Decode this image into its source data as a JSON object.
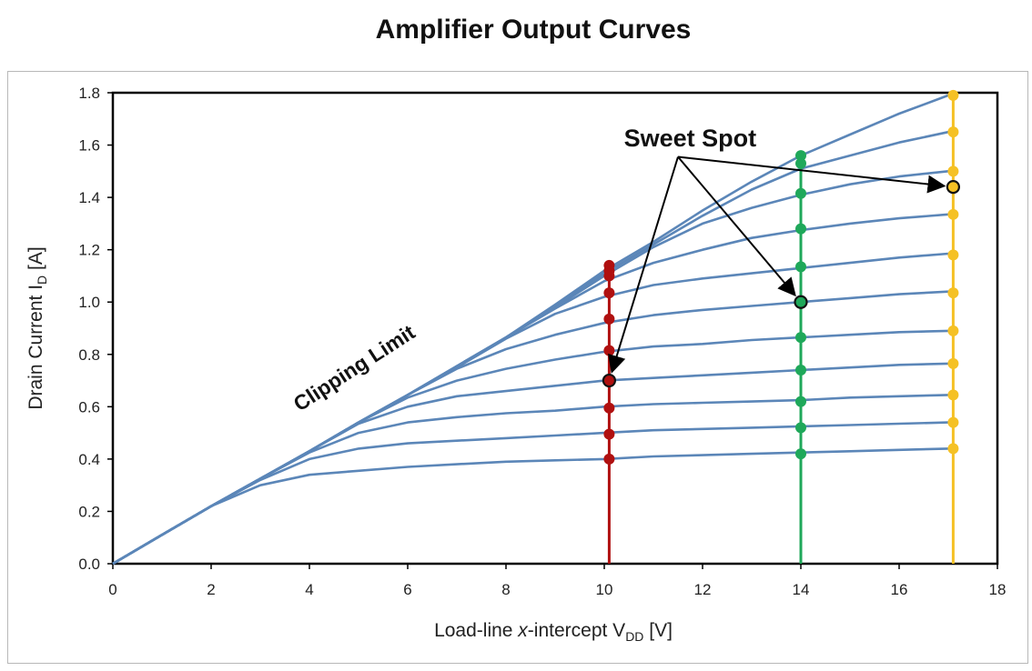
{
  "chart_data": {
    "type": "line",
    "title": "Amplifier Output Curves",
    "xlabel": {
      "main": "Load-line ",
      "italic": "x",
      "rest": "-intercept V",
      "sub": "DD",
      "unit": " [V]"
    },
    "ylabel": {
      "main": "Drain Current I",
      "sub": "D",
      "unit": " [A]"
    },
    "xlim": [
      0,
      18
    ],
    "ylim": [
      0,
      1.8
    ],
    "x_ticks": [
      "0",
      "2",
      "4",
      "6",
      "8",
      "10",
      "12",
      "14",
      "16",
      "18"
    ],
    "y_ticks": [
      "0.0",
      "0.2",
      "0.4",
      "0.6",
      "0.8",
      "1.0",
      "1.2",
      "1.4",
      "1.6",
      "1.8"
    ],
    "grid": false,
    "colors": {
      "curves": "#5b86b8",
      "red": "#b01010",
      "green": "#1fa85a",
      "yellow": "#f5c125",
      "frame": "#000000"
    },
    "series": [
      {
        "x": [
          0,
          1,
          2,
          3,
          4,
          5,
          6,
          7,
          8,
          9,
          10,
          11,
          12,
          13,
          14,
          15,
          16,
          17
        ],
        "y": [
          0,
          0.11,
          0.22,
          0.3,
          0.34,
          0.355,
          0.37,
          0.38,
          0.39,
          0.395,
          0.4,
          0.41,
          0.415,
          0.42,
          0.425,
          0.43,
          0.435,
          0.44
        ]
      },
      {
        "x": [
          0,
          1,
          2,
          3,
          4,
          5,
          6,
          7,
          8,
          9,
          10,
          11,
          12,
          13,
          14,
          15,
          16,
          17
        ],
        "y": [
          0,
          0.11,
          0.22,
          0.32,
          0.4,
          0.44,
          0.46,
          0.47,
          0.48,
          0.49,
          0.5,
          0.51,
          0.515,
          0.52,
          0.525,
          0.53,
          0.535,
          0.54
        ]
      },
      {
        "x": [
          0,
          1,
          2,
          3,
          4,
          5,
          6,
          7,
          8,
          9,
          10,
          11,
          12,
          13,
          14,
          15,
          16,
          17
        ],
        "y": [
          0,
          0.11,
          0.22,
          0.325,
          0.425,
          0.5,
          0.54,
          0.56,
          0.575,
          0.585,
          0.6,
          0.61,
          0.615,
          0.62,
          0.625,
          0.635,
          0.64,
          0.645
        ]
      },
      {
        "x": [
          0,
          1,
          2,
          3,
          4,
          5,
          6,
          7,
          8,
          9,
          10,
          11,
          12,
          13,
          14,
          15,
          16,
          17
        ],
        "y": [
          0,
          0.11,
          0.22,
          0.325,
          0.43,
          0.535,
          0.6,
          0.64,
          0.66,
          0.68,
          0.7,
          0.71,
          0.72,
          0.73,
          0.74,
          0.75,
          0.76,
          0.765
        ]
      },
      {
        "x": [
          0,
          1,
          2,
          3,
          4,
          5,
          6,
          7,
          8,
          9,
          10,
          11,
          12,
          13,
          14,
          15,
          16,
          17
        ],
        "y": [
          0,
          0.11,
          0.22,
          0.325,
          0.43,
          0.54,
          0.635,
          0.7,
          0.745,
          0.78,
          0.81,
          0.83,
          0.84,
          0.855,
          0.865,
          0.875,
          0.885,
          0.89
        ]
      },
      {
        "x": [
          0,
          1,
          2,
          3,
          4,
          5,
          6,
          7,
          8,
          9,
          10,
          11,
          12,
          13,
          14,
          15,
          16,
          17
        ],
        "y": [
          0,
          0.11,
          0.22,
          0.325,
          0.43,
          0.54,
          0.645,
          0.745,
          0.82,
          0.875,
          0.92,
          0.95,
          0.97,
          0.985,
          1.0,
          1.015,
          1.03,
          1.04
        ]
      },
      {
        "x": [
          0,
          1,
          2,
          3,
          4,
          5,
          6,
          7,
          8,
          9,
          10,
          11,
          12,
          13,
          14,
          15,
          16,
          17
        ],
        "y": [
          0,
          0.11,
          0.22,
          0.325,
          0.43,
          0.54,
          0.645,
          0.75,
          0.86,
          0.955,
          1.02,
          1.065,
          1.09,
          1.11,
          1.13,
          1.15,
          1.17,
          1.185
        ]
      },
      {
        "x": [
          0,
          1,
          2,
          3,
          4,
          5,
          6,
          7,
          8,
          9,
          10,
          11,
          12,
          13,
          14,
          15,
          16,
          17
        ],
        "y": [
          0,
          0.11,
          0.22,
          0.325,
          0.43,
          0.54,
          0.645,
          0.755,
          0.865,
          0.975,
          1.08,
          1.15,
          1.2,
          1.245,
          1.275,
          1.3,
          1.32,
          1.335
        ]
      },
      {
        "x": [
          0,
          1,
          2,
          3,
          4,
          5,
          6,
          7,
          8,
          9,
          10,
          11,
          12,
          13,
          14,
          15,
          16,
          17
        ],
        "y": [
          0,
          0.11,
          0.22,
          0.325,
          0.43,
          0.54,
          0.645,
          0.755,
          0.865,
          0.98,
          1.1,
          1.21,
          1.3,
          1.36,
          1.41,
          1.45,
          1.48,
          1.5
        ]
      },
      {
        "x": [
          0,
          1,
          2,
          3,
          4,
          5,
          6,
          7,
          8,
          9,
          10,
          11,
          12,
          13,
          14,
          15,
          16,
          17
        ],
        "y": [
          0,
          0.11,
          0.22,
          0.325,
          0.43,
          0.54,
          0.645,
          0.755,
          0.865,
          0.985,
          1.11,
          1.22,
          1.33,
          1.43,
          1.51,
          1.56,
          1.61,
          1.65
        ]
      },
      {
        "x": [
          0,
          1,
          2,
          3,
          4,
          5,
          6,
          7,
          8,
          9,
          10,
          11,
          12,
          13,
          14,
          15,
          16,
          17
        ],
        "y": [
          0,
          0.11,
          0.22,
          0.325,
          0.43,
          0.54,
          0.645,
          0.755,
          0.865,
          0.99,
          1.12,
          1.23,
          1.35,
          1.46,
          1.56,
          1.64,
          1.72,
          1.79
        ]
      }
    ],
    "vertical_lines": [
      {
        "color": "red",
        "x": 10.1,
        "y_top": 1.14,
        "points": [
          0.4,
          0.495,
          0.595,
          0.7,
          0.815,
          0.935,
          1.035,
          1.1,
          1.12,
          1.14
        ]
      },
      {
        "color": "green",
        "x": 14.0,
        "y_top": 1.56,
        "points": [
          0.42,
          0.52,
          0.62,
          0.74,
          0.865,
          1.0,
          1.135,
          1.28,
          1.415,
          1.53,
          1.56
        ]
      },
      {
        "color": "yellow",
        "x": 17.1,
        "y_top": 1.8,
        "points": [
          0.44,
          0.54,
          0.645,
          0.765,
          0.89,
          1.035,
          1.18,
          1.335,
          1.44,
          1.5,
          1.65,
          1.79
        ]
      }
    ],
    "highlighted_points": [
      {
        "x": 10.1,
        "y": 0.7,
        "color": "red"
      },
      {
        "x": 14.0,
        "y": 1.0,
        "color": "green"
      },
      {
        "x": 17.1,
        "y": 1.44,
        "color": "yellow"
      }
    ],
    "annotations": [
      {
        "text": "Sweet Spot",
        "x": 10.4,
        "y": 1.595
      },
      {
        "text": "Clipping Limit",
        "x": 3.8,
        "y": 0.58,
        "rotation": -33
      }
    ],
    "arrow_origin": {
      "x": 11.5,
      "y": 1.555
    }
  }
}
